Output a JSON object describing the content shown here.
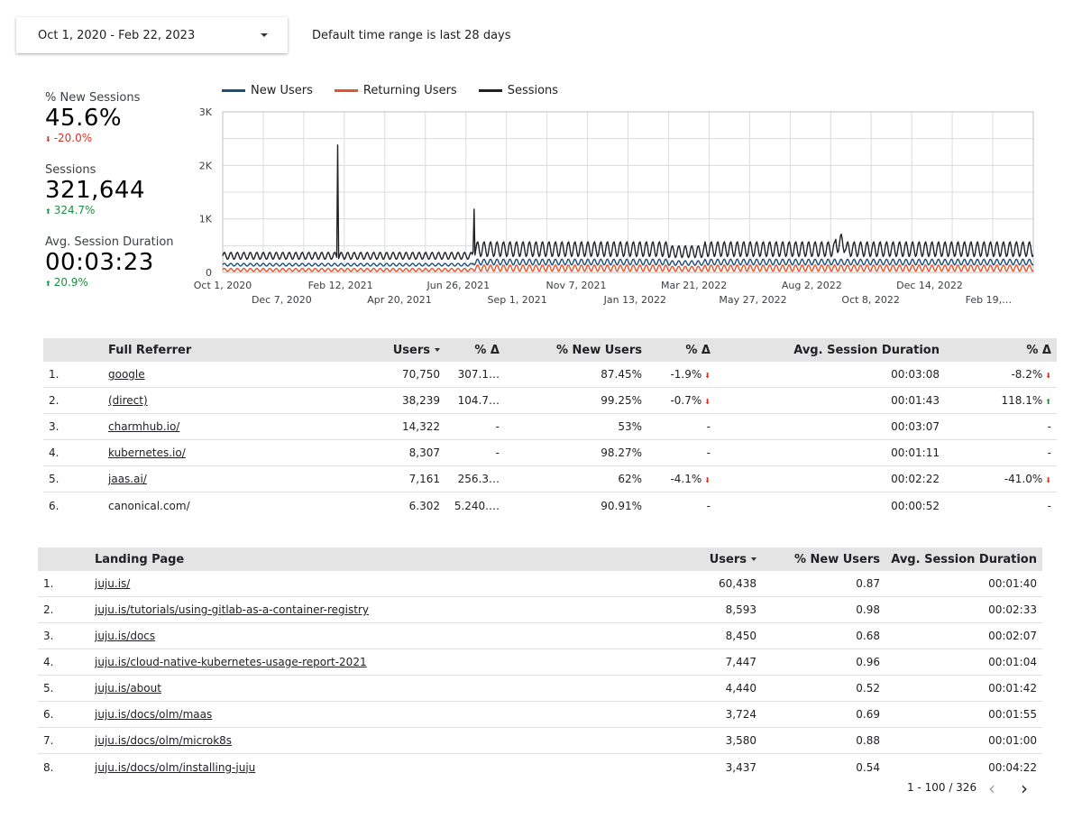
{
  "date_range": {
    "value": "Oct 1, 2020 - Feb 22, 2023",
    "note": "Default time range is last 28 days"
  },
  "scorecards": [
    {
      "label": "% New Sessions",
      "value": "45.6%",
      "delta": "-20.0%",
      "direction": "down"
    },
    {
      "label": "Sessions",
      "value": "321,644",
      "delta": "324.7%",
      "direction": "up"
    },
    {
      "label": "Avg. Session Duration",
      "value": "00:03:23",
      "delta": "20.9%",
      "direction": "up"
    }
  ],
  "chart_data": {
    "type": "line",
    "legend_position": "top",
    "grid": true,
    "ylim": [
      0,
      3000
    ],
    "y_ticks": [
      "0",
      "1K",
      "2K",
      "3K"
    ],
    "x_ticks_top": [
      "Oct 1, 2020",
      "Feb 12, 2021",
      "Jun 26, 2021",
      "Nov 7, 2021",
      "Mar 21, 2022",
      "Aug 2, 2022",
      "Dec 14, 2022"
    ],
    "x_ticks_bottom": [
      "Dec 7, 2020",
      "Apr 20, 2021",
      "Sep 1, 2021",
      "Jan 13, 2022",
      "May 27, 2022",
      "Oct 8, 2022",
      "Feb 19,…"
    ],
    "x_start": "2020-10-01",
    "x_end": "2023-02-22",
    "series": [
      {
        "name": "New Users",
        "color": "#1f4e79"
      },
      {
        "name": "Returning Users",
        "color": "#e8542a"
      },
      {
        "name": "Sessions",
        "color": "#202124"
      }
    ],
    "notable_points": [
      {
        "date": "2021-02-02",
        "series": "Sessions",
        "value": 2380
      },
      {
        "date": "2021-06-29",
        "series": "Sessions",
        "value": 1180
      }
    ],
    "approx_ranges": {
      "Sessions": [
        200,
        700
      ],
      "New Users": [
        100,
        300
      ],
      "Returning Users": [
        20,
        180
      ]
    }
  },
  "referrer_table": {
    "headers": [
      "Full Referrer",
      "Users",
      "% Δ",
      "% New Users",
      "% Δ",
      "Avg. Session Duration",
      "% Δ"
    ],
    "rows": [
      {
        "num": "1.",
        "ref": "google",
        "link": true,
        "users": "70,750",
        "d1": "307.1…",
        "new": "87.45%",
        "d2": "-1.9%",
        "d2dir": "down",
        "dur": "00:03:08",
        "d3": "-8.2%",
        "d3dir": "down"
      },
      {
        "num": "2.",
        "ref": "(direct)",
        "link": true,
        "users": "38,239",
        "d1": "104.7…",
        "new": "99.25%",
        "d2": "-0.7%",
        "d2dir": "down",
        "dur": "00:01:43",
        "d3": "118.1%",
        "d3dir": "up"
      },
      {
        "num": "3.",
        "ref": "charmhub.io/",
        "link": true,
        "users": "14,322",
        "d1": "-",
        "new": "53%",
        "d2": "-",
        "d2dir": "",
        "dur": "00:03:07",
        "d3": "-",
        "d3dir": ""
      },
      {
        "num": "4.",
        "ref": "kubernetes.io/",
        "link": true,
        "users": "8,307",
        "d1": "-",
        "new": "98.27%",
        "d2": "-",
        "d2dir": "",
        "dur": "00:01:11",
        "d3": "-",
        "d3dir": ""
      },
      {
        "num": "5.",
        "ref": "jaas.ai/",
        "link": true,
        "users": "7,161",
        "d1": "256.3…",
        "new": "62%",
        "d2": "-4.1%",
        "d2dir": "down",
        "dur": "00:02:22",
        "d3": "-41.0%",
        "d3dir": "down"
      },
      {
        "num": "6.",
        "ref": "canonical.com/",
        "link": false,
        "users": "6.302",
        "d1": "5.240.…",
        "new": "90.91%",
        "d2": "-",
        "d2dir": "",
        "dur": "00:00:52",
        "d3": "-",
        "d3dir": ""
      }
    ]
  },
  "landing_table": {
    "headers": [
      "Landing Page",
      "Users",
      "% New Users",
      "Avg. Session Duration"
    ],
    "rows": [
      {
        "num": "1.",
        "page": "juju.is/",
        "users": "60,438",
        "new": "0.87",
        "dur": "00:01:40"
      },
      {
        "num": "2.",
        "page": "juju.is/tutorials/using-gitlab-as-a-container-registry",
        "users": "8,593",
        "new": "0.98",
        "dur": "00:02:33"
      },
      {
        "num": "3.",
        "page": "juju.is/docs",
        "users": "8,450",
        "new": "0.68",
        "dur": "00:02:07"
      },
      {
        "num": "4.",
        "page": "juju.is/cloud-native-kubernetes-usage-report-2021",
        "users": "7,447",
        "new": "0.96",
        "dur": "00:01:04"
      },
      {
        "num": "5.",
        "page": "juju.is/about",
        "users": "4,440",
        "new": "0.52",
        "dur": "00:01:42"
      },
      {
        "num": "6.",
        "page": "juju.is/docs/olm/maas",
        "users": "3,724",
        "new": "0.69",
        "dur": "00:01:55"
      },
      {
        "num": "7.",
        "page": "juju.is/docs/olm/microk8s",
        "users": "3,580",
        "new": "0.88",
        "dur": "00:01:00"
      },
      {
        "num": "8.",
        "page": "juju.is/docs/olm/installing-juju",
        "users": "3,437",
        "new": "0.54",
        "dur": "00:04:22"
      }
    ]
  },
  "pagination": {
    "label": "1 - 100 / 326",
    "prev": "‹",
    "next": "›"
  }
}
